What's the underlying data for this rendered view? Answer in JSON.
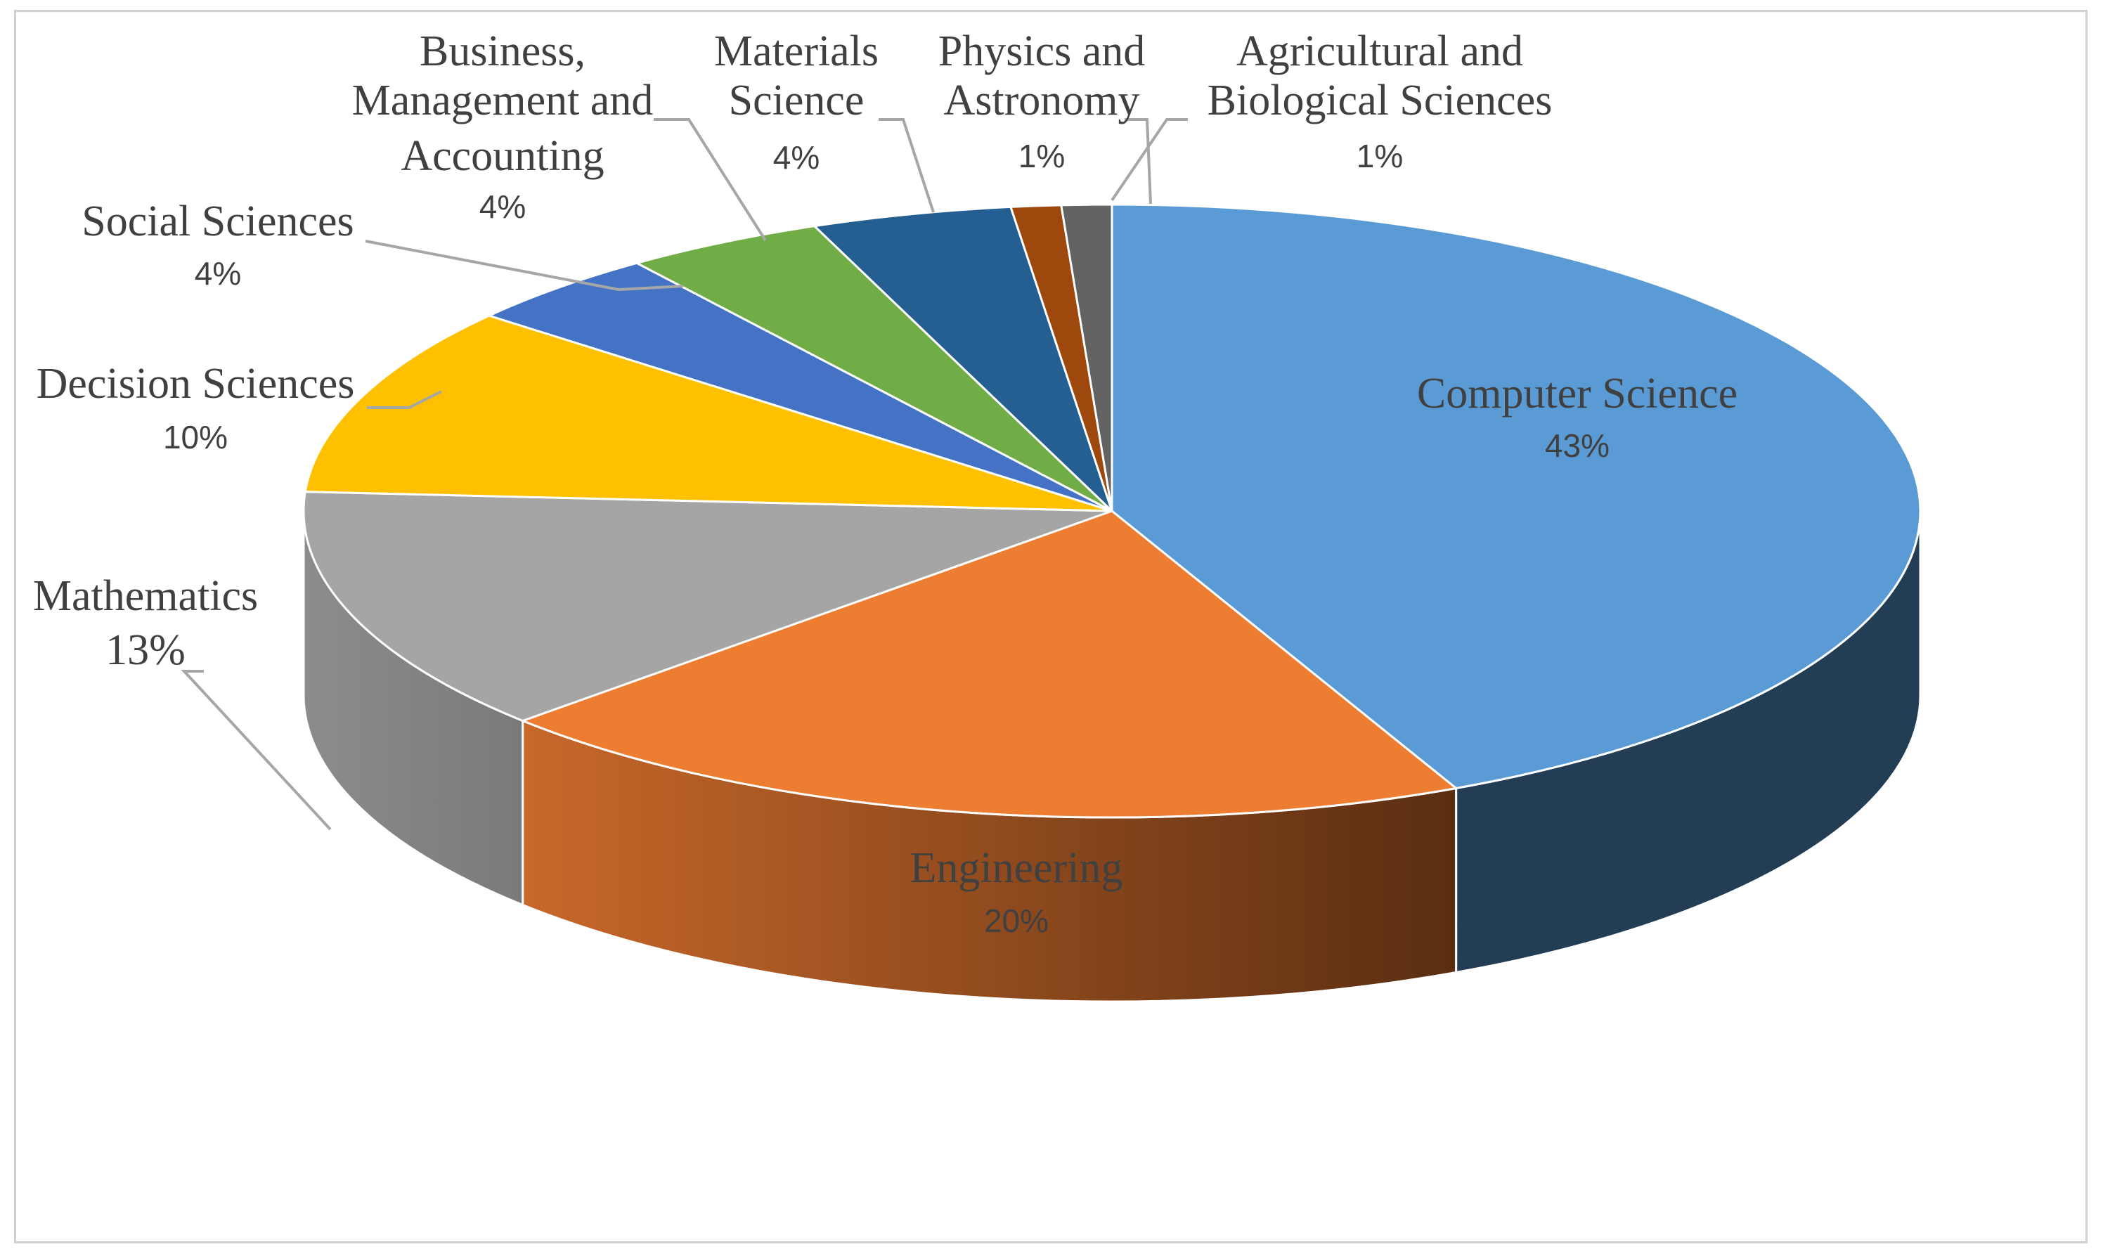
{
  "chart_data": {
    "type": "pie",
    "style": "3d",
    "title": "",
    "slices": [
      {
        "label": "Computer Science",
        "value": 43,
        "pct_label": "43%",
        "color": "#5b9bd5",
        "side_color": "#233d55"
      },
      {
        "label": "Engineering",
        "value": 20,
        "pct_label": "20%",
        "color": "#ed7d31",
        "side_color": "#b35d22"
      },
      {
        "label": "Mathematics",
        "value": 13,
        "pct_label": "13%",
        "color": "#a5a5a5",
        "side_color": "#8a8a8a"
      },
      {
        "label": "Decision Sciences",
        "value": 10,
        "pct_label": "10%",
        "color": "#ffc000",
        "side_color": "#b38700"
      },
      {
        "label": "Social Sciences",
        "value": 4,
        "pct_label": "4%",
        "color": "#4472c4",
        "side_color": "#2f5089"
      },
      {
        "label": "Business, Management and Accounting",
        "value": 4,
        "pct_label": "4%",
        "color": "#70ad47",
        "side_color": "#4e7932"
      },
      {
        "label": "Materials Science",
        "value": 4,
        "pct_label": "4%",
        "color": "#255e91",
        "side_color": "#1a4266"
      },
      {
        "label": "Physics and Astronomy",
        "value": 1,
        "pct_label": "1%",
        "color": "#9e480e",
        "side_color": "#6f320a"
      },
      {
        "label": "Agricultural and Biological Sciences",
        "value": 1,
        "pct_label": "1%",
        "color": "#636363",
        "side_color": "#454545"
      }
    ]
  }
}
